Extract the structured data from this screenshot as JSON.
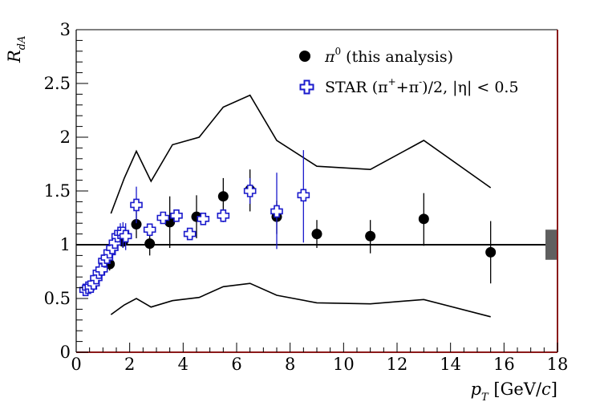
{
  "chart_data": {
    "type": "scatter",
    "title": "",
    "xlabel": "p_T [GeV/c]",
    "ylabel": "R_dA",
    "xlim": [
      0,
      18
    ],
    "ylim": [
      0,
      3
    ],
    "x_ticks": [
      "0",
      "2",
      "4",
      "6",
      "8",
      "10",
      "12",
      "14",
      "16",
      "18"
    ],
    "y_ticks": [
      "0",
      "0.5",
      "1",
      "1.5",
      "2",
      "2.5",
      "3"
    ],
    "reference_line": 1,
    "normalization_box": {
      "x": [
        17.55,
        18.0
      ],
      "y": [
        0.86,
        1.14
      ]
    },
    "legend_position": "top-right",
    "series": [
      {
        "name": "π⁰ (this analysis)",
        "legend_main": "π",
        "legend_sup": "0",
        "legend_rest": " (this analysis)",
        "marker": "filled-circle",
        "color": "#000000",
        "points": [
          {
            "x": 1.25,
            "y": 0.82,
            "lo": 0.76,
            "hi": 0.88
          },
          {
            "x": 1.75,
            "y": 1.03,
            "lo": 0.97,
            "hi": 1.09
          },
          {
            "x": 2.25,
            "y": 1.19,
            "lo": 1.06,
            "hi": 1.32
          },
          {
            "x": 2.75,
            "y": 1.01,
            "lo": 0.9,
            "hi": 1.12
          },
          {
            "x": 3.5,
            "y": 1.21,
            "lo": 0.97,
            "hi": 1.45
          },
          {
            "x": 4.5,
            "y": 1.26,
            "lo": 1.06,
            "hi": 1.46
          },
          {
            "x": 5.5,
            "y": 1.45,
            "lo": 1.28,
            "hi": 1.62
          },
          {
            "x": 6.5,
            "y": 1.51,
            "lo": 1.31,
            "hi": 1.7
          },
          {
            "x": 7.5,
            "y": 1.26,
            "lo": 1.1,
            "hi": 1.41
          },
          {
            "x": 9.0,
            "y": 1.1,
            "lo": 0.97,
            "hi": 1.23
          },
          {
            "x": 11.0,
            "y": 1.08,
            "lo": 0.92,
            "hi": 1.23
          },
          {
            "x": 13.0,
            "y": 1.24,
            "lo": 0.99,
            "hi": 1.48
          },
          {
            "x": 15.5,
            "y": 0.93,
            "lo": 0.64,
            "hi": 1.22
          }
        ]
      },
      {
        "name": "STAR (π⁺+π⁻)/2, |η| < 0.5",
        "legend_main": "STAR (π",
        "legend_sup": "+",
        "legend_rest": "+π",
        "legend_sup2": "-",
        "legend_tail": ")/2, |η| < 0.5",
        "marker": "open-cross",
        "color": "#1a1acc",
        "points": [
          {
            "x": 0.35,
            "y": 0.58,
            "lo": 0.56,
            "hi": 0.6
          },
          {
            "x": 0.45,
            "y": 0.6,
            "lo": 0.58,
            "hi": 0.62
          },
          {
            "x": 0.55,
            "y": 0.61,
            "lo": 0.59,
            "hi": 0.63
          },
          {
            "x": 0.65,
            "y": 0.64,
            "lo": 0.62,
            "hi": 0.66
          },
          {
            "x": 0.75,
            "y": 0.69,
            "lo": 0.67,
            "hi": 0.71
          },
          {
            "x": 0.85,
            "y": 0.74,
            "lo": 0.72,
            "hi": 0.76
          },
          {
            "x": 0.95,
            "y": 0.77,
            "lo": 0.75,
            "hi": 0.79
          },
          {
            "x": 1.05,
            "y": 0.85,
            "lo": 0.82,
            "hi": 0.88
          },
          {
            "x": 1.15,
            "y": 0.88,
            "lo": 0.85,
            "hi": 0.91
          },
          {
            "x": 1.25,
            "y": 0.93,
            "lo": 0.9,
            "hi": 0.96
          },
          {
            "x": 1.35,
            "y": 0.97,
            "lo": 0.93,
            "hi": 1.01
          },
          {
            "x": 1.45,
            "y": 1.02,
            "lo": 0.97,
            "hi": 1.07
          },
          {
            "x": 1.55,
            "y": 1.08,
            "lo": 1.02,
            "hi": 1.14
          },
          {
            "x": 1.65,
            "y": 1.11,
            "lo": 1.02,
            "hi": 1.2
          },
          {
            "x": 1.75,
            "y": 1.11,
            "lo": 0.97,
            "hi": 1.21
          },
          {
            "x": 1.85,
            "y": 1.08,
            "lo": 0.95,
            "hi": 1.2
          },
          {
            "x": 2.25,
            "y": 1.37,
            "lo": 1.2,
            "hi": 1.54
          },
          {
            "x": 2.75,
            "y": 1.14,
            "lo": 1.08,
            "hi": 1.18
          },
          {
            "x": 3.25,
            "y": 1.25,
            "lo": 1.22,
            "hi": 1.28
          },
          {
            "x": 3.75,
            "y": 1.27,
            "lo": 1.24,
            "hi": 1.3
          },
          {
            "x": 4.25,
            "y": 1.1,
            "lo": 1.07,
            "hi": 1.13
          },
          {
            "x": 4.75,
            "y": 1.24,
            "lo": 1.19,
            "hi": 1.29
          },
          {
            "x": 5.5,
            "y": 1.27,
            "lo": 1.21,
            "hi": 1.33
          },
          {
            "x": 6.5,
            "y": 1.5,
            "lo": 1.38,
            "hi": 1.62
          },
          {
            "x": 7.5,
            "y": 1.31,
            "lo": 0.96,
            "hi": 1.67
          },
          {
            "x": 8.5,
            "y": 1.46,
            "lo": 1.02,
            "hi": 1.88
          }
        ]
      }
    ],
    "bands": [
      {
        "name": "upper-band",
        "x": [
          1.3,
          1.8,
          2.25,
          2.8,
          3.6,
          4.6,
          5.5,
          6.5,
          7.5,
          9.0,
          11.0,
          13.0,
          15.5
        ],
        "y": [
          1.29,
          1.62,
          1.87,
          1.59,
          1.93,
          2.0,
          2.28,
          2.39,
          1.97,
          1.73,
          1.7,
          1.97,
          1.53
        ]
      },
      {
        "name": "lower-band",
        "x": [
          1.3,
          1.8,
          2.25,
          2.8,
          3.6,
          4.6,
          5.5,
          6.5,
          7.5,
          9.0,
          11.0,
          13.0,
          15.5
        ],
        "y": [
          0.35,
          0.44,
          0.5,
          0.42,
          0.48,
          0.51,
          0.61,
          0.64,
          0.53,
          0.46,
          0.45,
          0.49,
          0.33
        ]
      }
    ]
  }
}
